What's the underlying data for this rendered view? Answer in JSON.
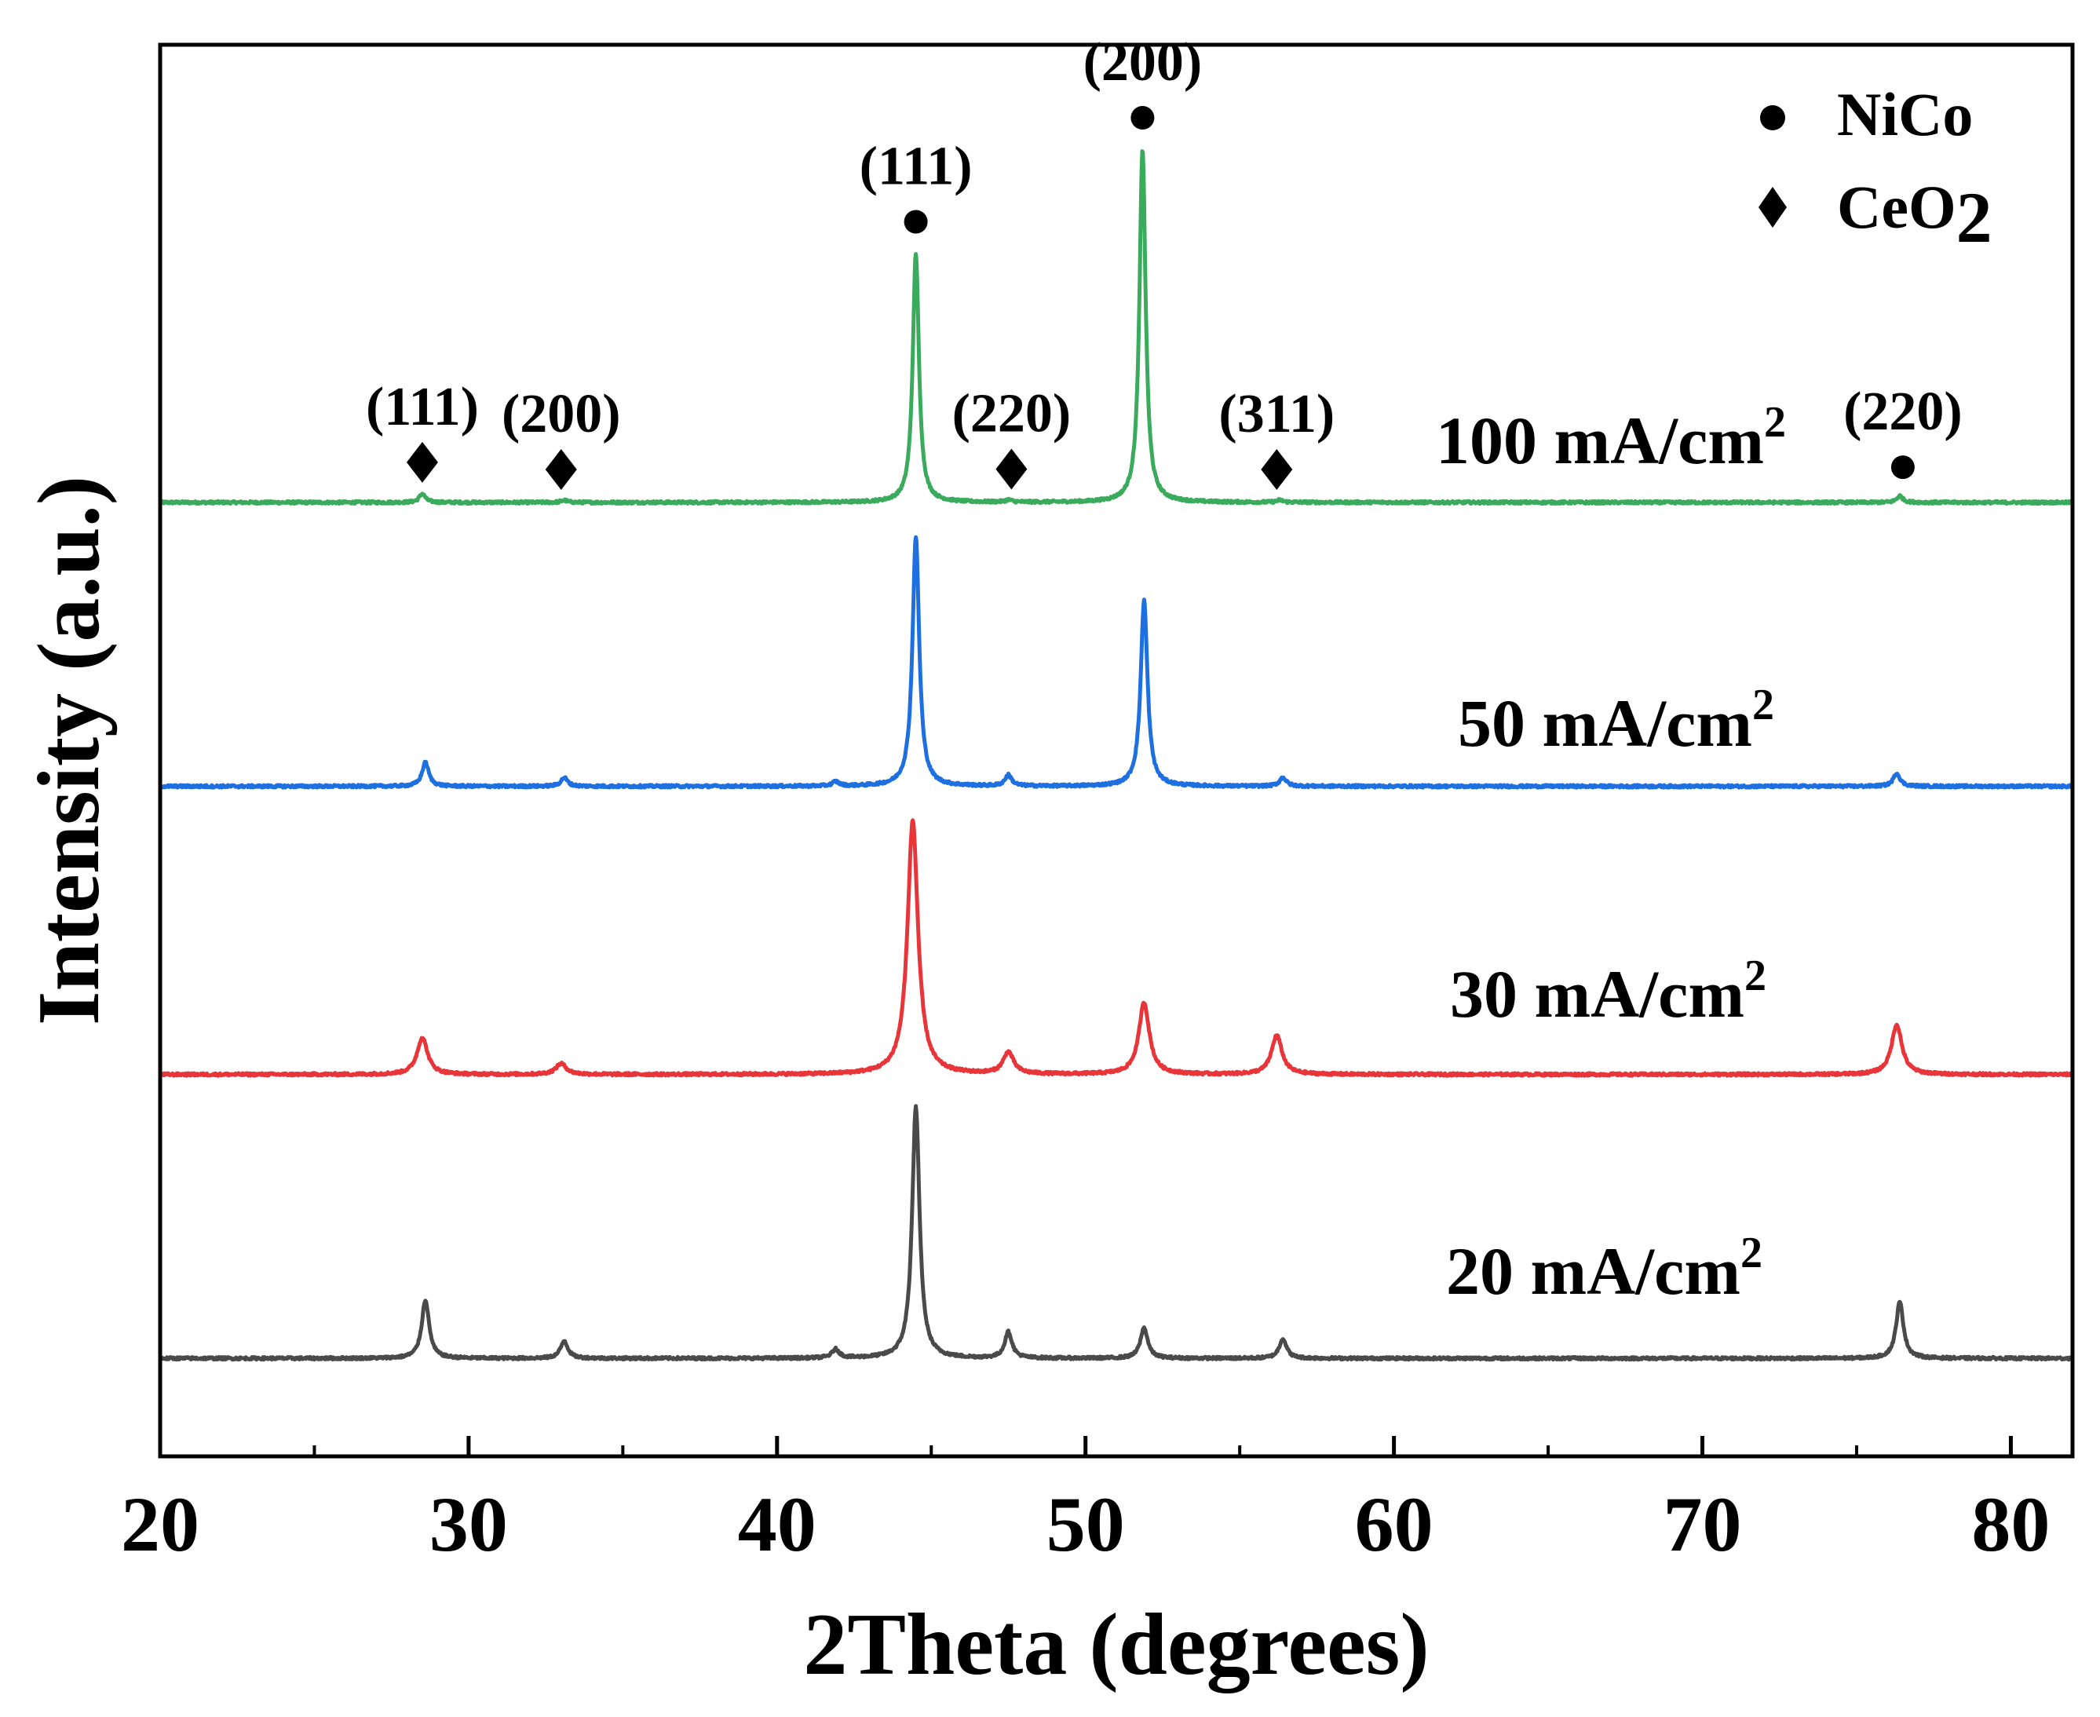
{
  "chart_data": {
    "type": "line",
    "title": "",
    "xlabel": "2Theta (degrees)",
    "ylabel": "Intensity (a.u.)",
    "xlim": [
      20,
      82
    ],
    "x_ticks": [
      20,
      30,
      40,
      50,
      60,
      70,
      80
    ],
    "x_tick_labels": [
      "20",
      "30",
      "40",
      "50",
      "60",
      "70",
      "80"
    ],
    "x_minor_ticks": [
      25,
      35,
      45,
      55,
      65,
      75
    ],
    "y_ticks_shown": false,
    "grid": false,
    "legend": {
      "position": "top-right",
      "entries": [
        {
          "marker": "circle",
          "label": "NiCo"
        },
        {
          "marker": "diamond",
          "label_main": "CeO",
          "label_sub": "2"
        }
      ]
    },
    "series": [
      {
        "name": "100 mA/cm2",
        "label_main": "100 mA/cm",
        "label_sup": "2",
        "color": "#3aaa5c",
        "baseline": 0.0,
        "width_scale": 1.0,
        "peaks": [
          {
            "x": 28.5,
            "height": 0.04
          },
          {
            "x": 33.1,
            "height": 0.01
          },
          {
            "x": 44.5,
            "height": 1.15
          },
          {
            "x": 47.5,
            "height": 0.01
          },
          {
            "x": 51.85,
            "height": 1.63
          },
          {
            "x": 56.3,
            "height": 0.01
          },
          {
            "x": 76.4,
            "height": 0.03
          }
        ]
      },
      {
        "name": "50 mA/cm2",
        "label_main": "50 mA/cm",
        "label_sup": "2",
        "color": "#1e6fe0",
        "baseline": -1.31,
        "width_scale": 1.1,
        "peaks": [
          {
            "x": 28.6,
            "height": 0.11
          },
          {
            "x": 33.1,
            "height": 0.04
          },
          {
            "x": 41.9,
            "height": 0.02
          },
          {
            "x": 44.5,
            "height": 1.15
          },
          {
            "x": 47.5,
            "height": 0.05
          },
          {
            "x": 51.9,
            "height": 0.86
          },
          {
            "x": 56.4,
            "height": 0.04
          },
          {
            "x": 76.3,
            "height": 0.06
          }
        ]
      },
      {
        "name": "30 mA/cm2",
        "label_main": "30 mA/cm",
        "label_sup": "2",
        "color": "#e8353a",
        "baseline": -2.64,
        "width_scale": 1.7,
        "peaks": [
          {
            "x": 28.5,
            "height": 0.17
          },
          {
            "x": 33.0,
            "height": 0.05
          },
          {
            "x": 44.4,
            "height": 1.17
          },
          {
            "x": 47.5,
            "height": 0.1
          },
          {
            "x": 51.9,
            "height": 0.33
          },
          {
            "x": 56.2,
            "height": 0.18
          },
          {
            "x": 76.3,
            "height": 0.23
          }
        ]
      },
      {
        "name": "20 mA/cm2",
        "label_main": "20 mA/cm",
        "label_sup": "2",
        "color": "#4a4a4a",
        "baseline": -3.95,
        "width_scale": 1.2,
        "peaks": [
          {
            "x": 28.6,
            "height": 0.27
          },
          {
            "x": 33.1,
            "height": 0.08
          },
          {
            "x": 41.9,
            "height": 0.04
          },
          {
            "x": 44.5,
            "height": 1.16
          },
          {
            "x": 47.5,
            "height": 0.12
          },
          {
            "x": 51.9,
            "height": 0.14
          },
          {
            "x": 56.4,
            "height": 0.09
          },
          {
            "x": 76.4,
            "height": 0.26
          }
        ]
      }
    ],
    "annotations": [
      {
        "marker": "diamond",
        "x": 28.5,
        "label": "(111)"
      },
      {
        "marker": "diamond",
        "x": 33.0,
        "label": "(200)"
      },
      {
        "marker": "circle",
        "x": 44.5,
        "label": "(111)"
      },
      {
        "marker": "diamond",
        "x": 47.6,
        "label": "(220)"
      },
      {
        "marker": "circle",
        "x": 51.85,
        "label": "(200)"
      },
      {
        "marker": "diamond",
        "x": 56.2,
        "label": "(311)"
      },
      {
        "marker": "circle",
        "x": 76.5,
        "label": "(220)"
      }
    ]
  }
}
